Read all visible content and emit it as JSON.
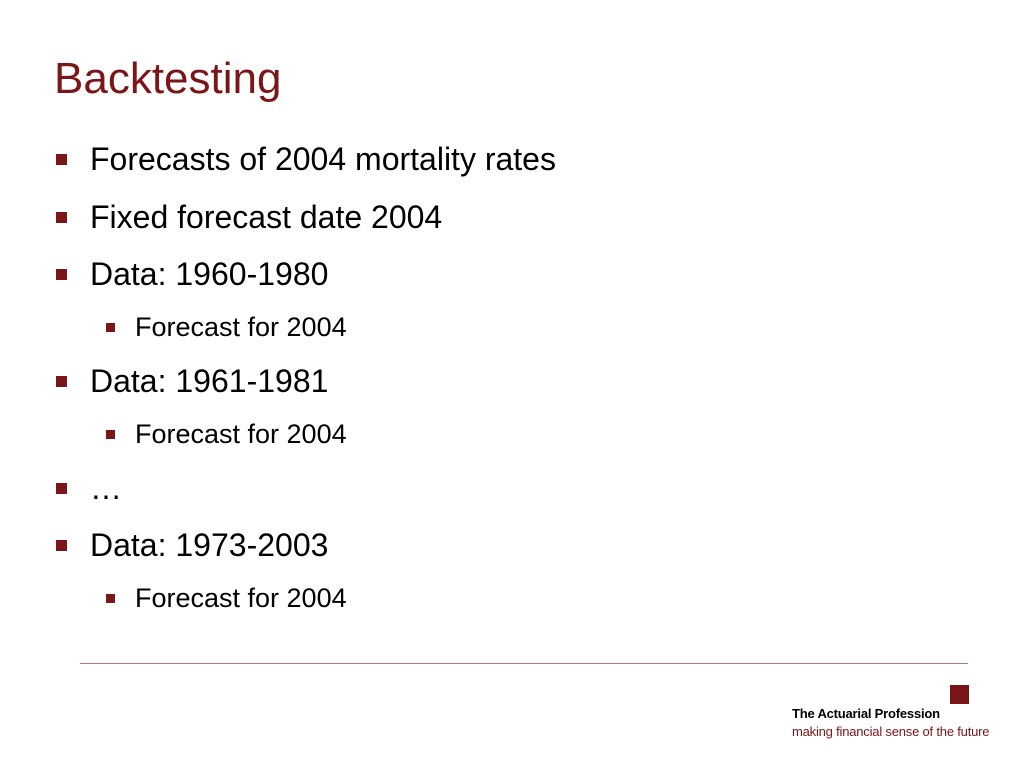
{
  "slide": {
    "title": "Backtesting",
    "bullets": [
      {
        "level": 1,
        "text": "Forecasts of 2004 mortality rates"
      },
      {
        "level": 1,
        "text": "Fixed forecast date 2004"
      },
      {
        "level": 1,
        "text": "Data: 1960-1980"
      },
      {
        "level": 2,
        "text": "Forecast for 2004"
      },
      {
        "level": 1,
        "text": "Data: 1961-1981"
      },
      {
        "level": 2,
        "text": "Forecast for 2004"
      },
      {
        "level": 1,
        "text": "…"
      },
      {
        "level": 1,
        "text": "Data: 1973-2003"
      },
      {
        "level": 2,
        "text": "Forecast for 2004"
      }
    ]
  },
  "footer": {
    "logo_name": "The Actuarial Profession",
    "logo_tagline": "making financial sense of the future"
  },
  "colors": {
    "accent": "#7a1518",
    "text": "#000000",
    "background": "#ffffff"
  }
}
